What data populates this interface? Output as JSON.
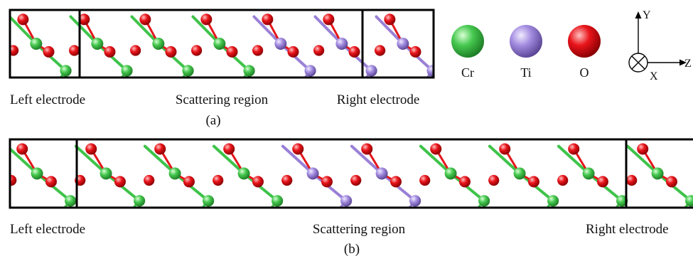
{
  "panel_a": {
    "caption": "(a)",
    "left_label": "Left electrode",
    "center_label": "Scattering region",
    "right_label": "Right electrode"
  },
  "panel_b": {
    "caption": "(b)",
    "left_label": "Left electrode",
    "center_label": "Scattering region",
    "right_label": "Right electrode"
  },
  "legend": {
    "items": [
      {
        "label": "Cr",
        "color": "#3fc34a",
        "icon": "cr-sphere-icon"
      },
      {
        "label": "Ti",
        "color": "#a58be0",
        "icon": "ti-sphere-icon"
      },
      {
        "label": "O",
        "color": "#e8141a",
        "icon": "o-sphere-icon"
      }
    ]
  },
  "axes": {
    "y_label": "Y",
    "z_label": "Z",
    "x_label": "X"
  },
  "chains": {
    "panel_a_metals": [
      "Cr",
      "Cr",
      "Cr",
      "Cr",
      "Ti",
      "Ti",
      "Ti"
    ],
    "panel_b_metals": [
      "Cr",
      "Cr",
      "Cr",
      "Cr",
      "Ti",
      "Ti",
      "Cr",
      "Cr",
      "Cr",
      "Cr"
    ]
  },
  "colors": {
    "Cr": "#3fc34a",
    "Ti": "#9a80d6",
    "O": "#e3161b",
    "frame": "#000000"
  }
}
